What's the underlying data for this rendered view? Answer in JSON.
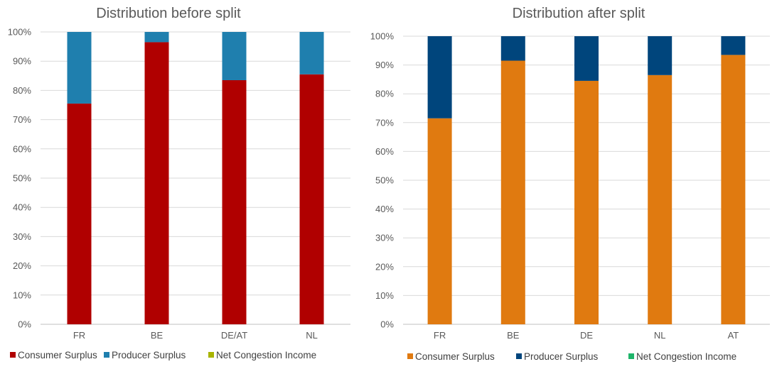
{
  "chart_data": [
    {
      "type": "bar",
      "stacked": true,
      "title": "Distribution before split",
      "categories": [
        "FR",
        "BE",
        "DE/AT",
        "NL"
      ],
      "ylim": [
        0,
        100
      ],
      "yticks": [
        "0%",
        "10%",
        "20%",
        "30%",
        "40%",
        "50%",
        "60%",
        "70%",
        "80%",
        "90%",
        "100%"
      ],
      "grid": true,
      "legend_position": "bottom",
      "series": [
        {
          "name": "Consumer Surplus",
          "color": "#b00000",
          "values": [
            75.5,
            96.5,
            83.5,
            85.5
          ]
        },
        {
          "name": "Producer Surplus",
          "color": "#1f7fae",
          "values": [
            24.5,
            3.5,
            16.5,
            14.5
          ]
        },
        {
          "name": "Net Congestion Income",
          "color": "#a8b400",
          "values": [
            0,
            0,
            0,
            0
          ]
        }
      ]
    },
    {
      "type": "bar",
      "stacked": true,
      "title": "Distribution after split",
      "categories": [
        "FR",
        "BE",
        "DE",
        "NL",
        "AT"
      ],
      "ylim": [
        0,
        100
      ],
      "yticks": [
        "0%",
        "10%",
        "20%",
        "30%",
        "40%",
        "50%",
        "60%",
        "70%",
        "80%",
        "90%",
        "100%"
      ],
      "grid": true,
      "legend_position": "bottom",
      "series": [
        {
          "name": "Consumer Surplus",
          "color": "#e07a10",
          "values": [
            71.5,
            91.5,
            84.5,
            86.5,
            93.5
          ]
        },
        {
          "name": "Producer Surplus",
          "color": "#00457c",
          "values": [
            28.5,
            8.5,
            15.5,
            13.5,
            6.5
          ]
        },
        {
          "name": "Net Congestion Income",
          "color": "#1fb56a",
          "values": [
            0,
            0,
            0,
            0,
            0
          ]
        }
      ]
    }
  ]
}
